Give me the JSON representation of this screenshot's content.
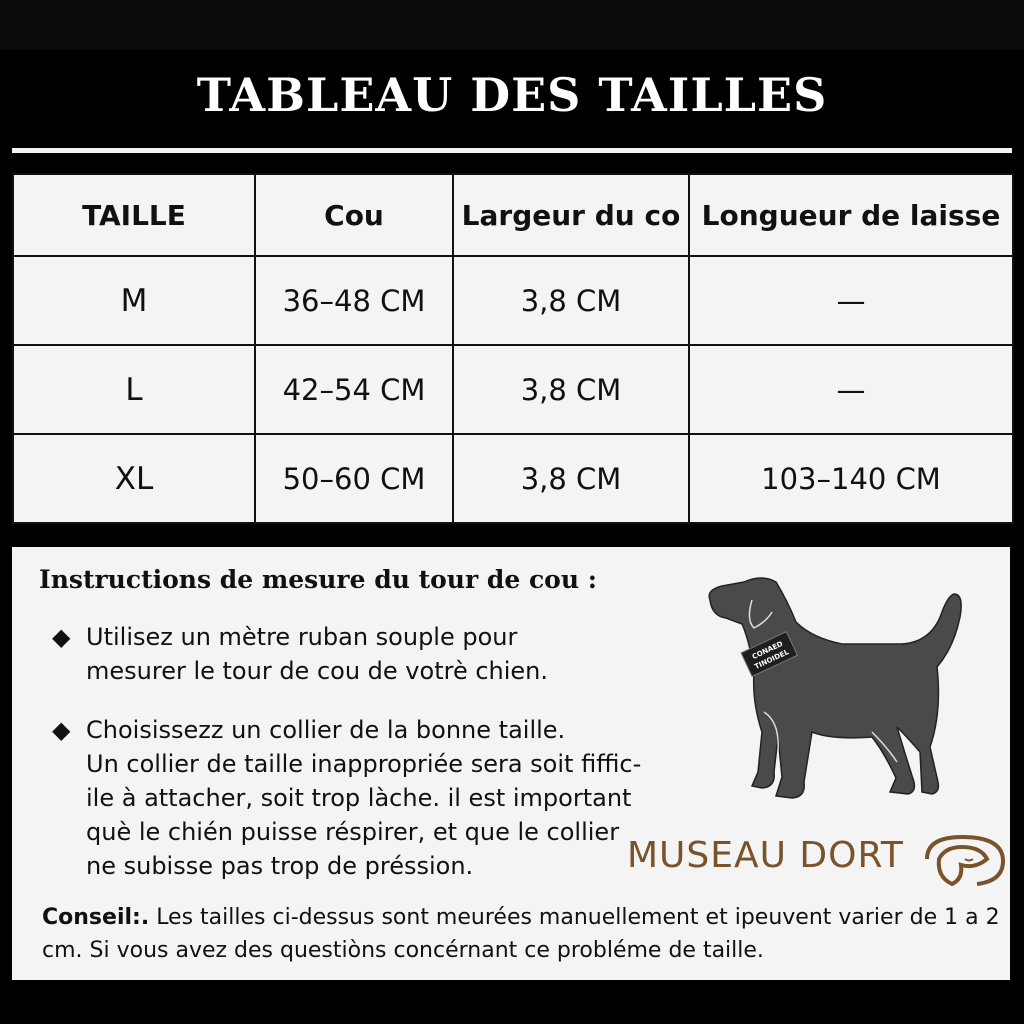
{
  "title": "TABLEAU DES TAILLES",
  "table": {
    "headers": [
      "TAILLE",
      "Cou",
      "Largeur du co",
      "Longueur de laisse"
    ],
    "rows": [
      [
        "M",
        "36–48 CM",
        "3,8 CM",
        "—"
      ],
      [
        "L",
        "42–54 CM",
        "3,8 CM",
        "—"
      ],
      [
        "XL",
        "50–60 CM",
        "3,8 CM",
        "103–140 CM"
      ]
    ]
  },
  "instructions": {
    "title": "Instructions de mesure du tour de cou :",
    "bullets": [
      {
        "lines": [
          "Utilisez un mètre ruban souple pour",
          "mesurer le tour de cou de votrè chien."
        ]
      },
      {
        "lines": [
          "Choisissezz un collier de la bonne taille.",
          "Un collier de taille inappropriée sera soit fiffic-",
          "ile à attacher, soit trop làche. il est important",
          "què le chién puisse réspirer, et que le collier",
          "ne subisse pas trop de préssion."
        ]
      }
    ],
    "tip_label": "Conseil:.",
    "tip_text": "Les tailles ci-dessus sont meurées manuellement et ipeuvent varier de 1 a 2 cm. Si vous avez des questiòns concérnant ce probléme de taille."
  },
  "illustration": {
    "icon": "dog-silhouette-icon",
    "collar_text": "CONAED TINOIDEL"
  },
  "brand": {
    "name": "MUSEAU DORT",
    "color": "#7a522c",
    "icon": "sleeping-dog-logo-icon"
  }
}
